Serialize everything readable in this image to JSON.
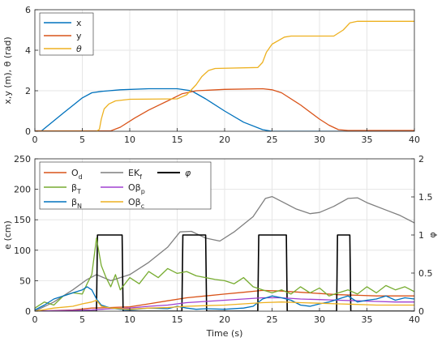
{
  "chart_data": [
    {
      "type": "line",
      "title": "",
      "xlabel": "",
      "ylabel": "x,y (m), θ (rad)",
      "xlim": [
        0,
        40
      ],
      "ylim": [
        0,
        6
      ],
      "xticks": [
        0,
        5,
        10,
        15,
        20,
        25,
        30,
        35,
        40
      ],
      "yticks": [
        0,
        2,
        4,
        6
      ],
      "legend_position": "top-left",
      "grid": true,
      "series": [
        {
          "name": "x",
          "color": "#0072BD",
          "points": [
            [
              0,
              0.02
            ],
            [
              0.7,
              0.02
            ],
            [
              3,
              0.9
            ],
            [
              5,
              1.65
            ],
            [
              6,
              1.9
            ],
            [
              7,
              1.97
            ],
            [
              9,
              2.05
            ],
            [
              12,
              2.1
            ],
            [
              15,
              2.1
            ],
            [
              16.5,
              2.0
            ],
            [
              18,
              1.6
            ],
            [
              20,
              1.0
            ],
            [
              22,
              0.45
            ],
            [
              24,
              0.08
            ],
            [
              25,
              0.0
            ],
            [
              40,
              0.0
            ]
          ]
        },
        {
          "name": "y",
          "color": "#D95319",
          "points": [
            [
              0,
              0.02
            ],
            [
              8,
              0.02
            ],
            [
              9,
              0.2
            ],
            [
              10.5,
              0.65
            ],
            [
              12,
              1.05
            ],
            [
              14,
              1.5
            ],
            [
              15.5,
              1.85
            ],
            [
              17,
              2.0
            ],
            [
              20,
              2.07
            ],
            [
              24,
              2.1
            ],
            [
              25,
              2.05
            ],
            [
              26,
              1.9
            ],
            [
              28,
              1.3
            ],
            [
              30,
              0.6
            ],
            [
              31,
              0.3
            ],
            [
              32,
              0.08
            ],
            [
              33,
              0.04
            ],
            [
              40,
              0.04
            ]
          ]
        },
        {
          "name": "θ",
          "color": "#EDB120",
          "points": [
            [
              0,
              0.0
            ],
            [
              6.5,
              0.0
            ],
            [
              6.8,
              0.1
            ],
            [
              7,
              0.6
            ],
            [
              7.3,
              1.1
            ],
            [
              7.8,
              1.35
            ],
            [
              8.5,
              1.5
            ],
            [
              10,
              1.58
            ],
            [
              15,
              1.6
            ],
            [
              16,
              1.8
            ],
            [
              17,
              2.3
            ],
            [
              17.6,
              2.7
            ],
            [
              18.3,
              3.0
            ],
            [
              19,
              3.1
            ],
            [
              23.5,
              3.15
            ],
            [
              24,
              3.4
            ],
            [
              24.4,
              3.9
            ],
            [
              25,
              4.3
            ],
            [
              26.3,
              4.65
            ],
            [
              27,
              4.7
            ],
            [
              31.5,
              4.7
            ],
            [
              32.5,
              5.0
            ],
            [
              33.2,
              5.35
            ],
            [
              34,
              5.43
            ],
            [
              40,
              5.43
            ]
          ]
        }
      ]
    },
    {
      "type": "line",
      "title": "",
      "xlabel": "Time (s)",
      "ylabel": "e (cm)",
      "y2label": "φ",
      "xlim": [
        0,
        40
      ],
      "ylim": [
        0,
        250
      ],
      "y2lim": [
        0,
        2
      ],
      "xticks": [
        0,
        5,
        10,
        15,
        20,
        25,
        30,
        35,
        40
      ],
      "yticks": [
        0,
        50,
        100,
        150,
        200,
        250
      ],
      "y2ticks": [
        0,
        0.5,
        1,
        1.5,
        2
      ],
      "legend_position": "top-left",
      "grid": true,
      "series": [
        {
          "name": "O_d",
          "color": "#D95319",
          "points": [
            [
              0,
              0
            ],
            [
              4,
              2
            ],
            [
              6,
              5
            ],
            [
              8,
              6
            ],
            [
              10,
              7
            ],
            [
              12,
              12
            ],
            [
              14,
              17
            ],
            [
              16,
              22
            ],
            [
              18,
              25
            ],
            [
              20,
              28
            ],
            [
              22,
              31
            ],
            [
              24,
              34
            ],
            [
              26,
              33
            ],
            [
              28,
              31
            ],
            [
              30,
              29
            ],
            [
              32,
              27
            ],
            [
              34,
              26
            ],
            [
              36,
              25
            ],
            [
              38,
              25
            ],
            [
              40,
              25
            ]
          ]
        },
        {
          "name": "EK_f",
          "color": "#7F7F7F",
          "points": [
            [
              0,
              0
            ],
            [
              2,
              15
            ],
            [
              4,
              35
            ],
            [
              5.5,
              52
            ],
            [
              6.5,
              60
            ],
            [
              8,
              50
            ],
            [
              10,
              60
            ],
            [
              12,
              80
            ],
            [
              14,
              105
            ],
            [
              15.3,
              130
            ],
            [
              16.5,
              131
            ],
            [
              18,
              120
            ],
            [
              19.5,
              115
            ],
            [
              21,
              130
            ],
            [
              23,
              155
            ],
            [
              24.3,
              185
            ],
            [
              25,
              188
            ],
            [
              26,
              180
            ],
            [
              27.5,
              168
            ],
            [
              29,
              160
            ],
            [
              30,
              162
            ],
            [
              31.5,
              172
            ],
            [
              33,
              185
            ],
            [
              34,
              186
            ],
            [
              35,
              178
            ],
            [
              37,
              166
            ],
            [
              38.5,
              157
            ],
            [
              40,
              145
            ]
          ]
        },
        {
          "name": "φ",
          "axis": "right",
          "color": "#000000",
          "points": [
            [
              0,
              0
            ],
            [
              6.5,
              0
            ],
            [
              6.6,
              1
            ],
            [
              9.2,
              1
            ],
            [
              9.3,
              0
            ],
            [
              15.5,
              0
            ],
            [
              15.6,
              1
            ],
            [
              18,
              1
            ],
            [
              18.1,
              0
            ],
            [
              23.5,
              0
            ],
            [
              23.6,
              1
            ],
            [
              26.5,
              1
            ],
            [
              26.6,
              0
            ],
            [
              31.8,
              0
            ],
            [
              31.9,
              1
            ],
            [
              33.2,
              1
            ],
            [
              33.3,
              0
            ],
            [
              40,
              0
            ]
          ]
        },
        {
          "name": "β_T",
          "color": "#77AC30",
          "points": [
            [
              0,
              5
            ],
            [
              1,
              15
            ],
            [
              2,
              10
            ],
            [
              3,
              25
            ],
            [
              4,
              30
            ],
            [
              5,
              28
            ],
            [
              5.5,
              45
            ],
            [
              6,
              60
            ],
            [
              6.5,
              120
            ],
            [
              7,
              75
            ],
            [
              7.5,
              55
            ],
            [
              8,
              40
            ],
            [
              8.5,
              60
            ],
            [
              9,
              35
            ],
            [
              10,
              55
            ],
            [
              11,
              45
            ],
            [
              12,
              65
            ],
            [
              13,
              55
            ],
            [
              14,
              70
            ],
            [
              15,
              62
            ],
            [
              16,
              65
            ],
            [
              17,
              58
            ],
            [
              18,
              55
            ],
            [
              19,
              52
            ],
            [
              20,
              50
            ],
            [
              21,
              45
            ],
            [
              22,
              55
            ],
            [
              23,
              40
            ],
            [
              24,
              35
            ],
            [
              25,
              30
            ],
            [
              26,
              35
            ],
            [
              27,
              28
            ],
            [
              28,
              40
            ],
            [
              29,
              30
            ],
            [
              30,
              38
            ],
            [
              31,
              25
            ],
            [
              32,
              30
            ],
            [
              33,
              35
            ],
            [
              34,
              28
            ],
            [
              35,
              40
            ],
            [
              36,
              30
            ],
            [
              37,
              42
            ],
            [
              38,
              35
            ],
            [
              39,
              40
            ],
            [
              40,
              32
            ]
          ]
        },
        {
          "name": "O_{β_p}",
          "color": "#A040D0",
          "points": [
            [
              0,
              0
            ],
            [
              6,
              2
            ],
            [
              8,
              4
            ],
            [
              10,
              5
            ],
            [
              12,
              8
            ],
            [
              14,
              10
            ],
            [
              16,
              14
            ],
            [
              18,
              16
            ],
            [
              20,
              18
            ],
            [
              22,
              20
            ],
            [
              24,
              22
            ],
            [
              26,
              22
            ],
            [
              28,
              20
            ],
            [
              30,
              19
            ],
            [
              32,
              18
            ],
            [
              34,
              17
            ],
            [
              36,
              16
            ],
            [
              38,
              15
            ],
            [
              40,
              15
            ]
          ]
        },
        {
          "name": "β_N",
          "color": "#0072BD",
          "points": [
            [
              0,
              2
            ],
            [
              1,
              10
            ],
            [
              2,
              20
            ],
            [
              3,
              25
            ],
            [
              4,
              30
            ],
            [
              5,
              35
            ],
            [
              5.5,
              40
            ],
            [
              6,
              35
            ],
            [
              6.5,
              20
            ],
            [
              7,
              10
            ],
            [
              8,
              5
            ],
            [
              9,
              3
            ],
            [
              10,
              2
            ],
            [
              12,
              5
            ],
            [
              14,
              4
            ],
            [
              15,
              8
            ],
            [
              16,
              5
            ],
            [
              17,
              3
            ],
            [
              18,
              4
            ],
            [
              20,
              3
            ],
            [
              22,
              5
            ],
            [
              23,
              8
            ],
            [
              24,
              20
            ],
            [
              25,
              25
            ],
            [
              26,
              22
            ],
            [
              27,
              18
            ],
            [
              28,
              10
            ],
            [
              29,
              8
            ],
            [
              30,
              12
            ],
            [
              31,
              15
            ],
            [
              32,
              20
            ],
            [
              33,
              25
            ],
            [
              34,
              15
            ],
            [
              35,
              18
            ],
            [
              36,
              20
            ],
            [
              37,
              25
            ],
            [
              38,
              18
            ],
            [
              39,
              22
            ],
            [
              40,
              20
            ]
          ]
        },
        {
          "name": "O_{β_c}",
          "color": "#EDB120",
          "points": [
            [
              0,
              0
            ],
            [
              2,
              5
            ],
            [
              4,
              8
            ],
            [
              5,
              12
            ],
            [
              6,
              15
            ],
            [
              6.5,
              18
            ],
            [
              7,
              8
            ],
            [
              8,
              5
            ],
            [
              10,
              3
            ],
            [
              12,
              5
            ],
            [
              14,
              6
            ],
            [
              16,
              8
            ],
            [
              18,
              9
            ],
            [
              20,
              10
            ],
            [
              22,
              12
            ],
            [
              24,
              14
            ],
            [
              26,
              15
            ],
            [
              28,
              14
            ],
            [
              30,
              13
            ],
            [
              32,
              12
            ],
            [
              34,
              11
            ],
            [
              36,
              10
            ],
            [
              38,
              10
            ],
            [
              40,
              10
            ]
          ]
        }
      ]
    }
  ],
  "top_legend": [
    {
      "label": "x",
      "color": "#0072BD"
    },
    {
      "label": "y",
      "color": "#D95319"
    },
    {
      "label": "θ",
      "color": "#EDB120"
    }
  ],
  "bottom_legend": {
    "col1": [
      {
        "base": "O",
        "sub": "d",
        "sub2": "",
        "color": "#D95319"
      },
      {
        "base": "β",
        "sub": "T",
        "sub2": "",
        "color": "#77AC30"
      },
      {
        "base": "β",
        "sub": "N",
        "sub2": "",
        "color": "#0072BD"
      }
    ],
    "col2": [
      {
        "base": "EK",
        "sub": "f",
        "sub2": "",
        "color": "#7F7F7F"
      },
      {
        "base": "Oβ",
        "sub": "p",
        "sub2": "",
        "color": "#A040D0"
      },
      {
        "base": "Oβ",
        "sub": "c",
        "sub2": "",
        "color": "#EDB120"
      }
    ],
    "col3": [
      {
        "base": "φ",
        "sub": "",
        "sub2": "",
        "color": "#000000"
      }
    ]
  }
}
